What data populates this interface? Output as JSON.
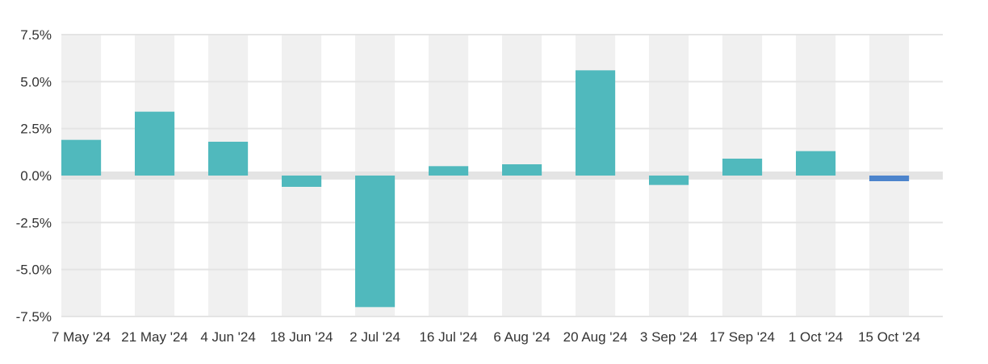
{
  "chart_data": {
    "type": "bar",
    "title": "",
    "xlabel": "",
    "ylabel": "",
    "categories": [
      "7 May '24",
      "21 May '24",
      "4 Jun '24",
      "18 Jun '24",
      "2 Jul '24",
      "16 Jul '24",
      "6 Aug '24",
      "20 Aug '24",
      "3 Sep '24",
      "17 Sep '24",
      "1 Oct '24",
      "15 Oct '24"
    ],
    "values": [
      1.9,
      3.4,
      1.8,
      -0.6,
      -7.0,
      0.5,
      0.6,
      5.6,
      -0.5,
      0.9,
      1.3,
      -0.3
    ],
    "ylim": [
      -7.5,
      7.5
    ],
    "yticks": [
      7.5,
      5.0,
      2.5,
      0.0,
      -2.5,
      -5.0,
      -7.5
    ],
    "ytick_labels": [
      "7.5%",
      "5.0%",
      "2.5%",
      "0.0%",
      "-2.5%",
      "-5.0%",
      "-7.5%"
    ],
    "grid": "alternating column bands",
    "legend": "none",
    "colors": {
      "bar": "#50b9bd",
      "highlight_bar": "#4c84cc",
      "band": "#f0f0f0",
      "zero_line": "#e4e4e4",
      "grid_line": "#e4e4e4",
      "text": "#333333"
    },
    "highlight_index": 11
  }
}
